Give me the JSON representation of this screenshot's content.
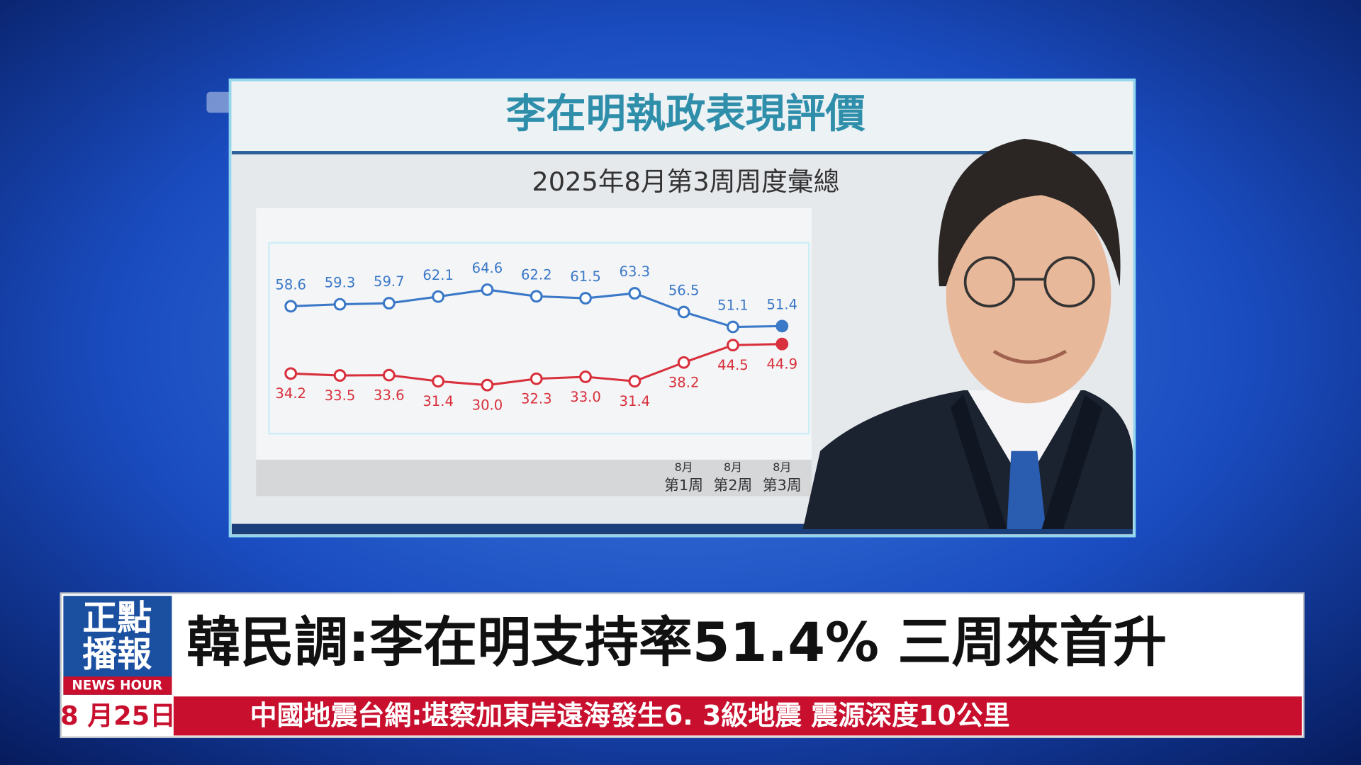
{
  "chart_data": {
    "type": "line",
    "title": "李在明執政表現評價",
    "subtitle": "2025年8月第3周周度彙總",
    "categories": [
      null,
      null,
      null,
      null,
      null,
      null,
      null,
      null,
      "8月\n第1周",
      "8月\n第2周",
      "8月\n第3周"
    ],
    "series": [
      {
        "color": "#3a78c8",
        "values": [
          58.6,
          59.3,
          59.7,
          62.1,
          64.6,
          62.2,
          61.5,
          63.3,
          56.5,
          51.1,
          51.4
        ]
      },
      {
        "color": "#d8303c",
        "values": [
          34.2,
          33.5,
          33.6,
          31.4,
          30.0,
          32.3,
          33.0,
          31.4,
          38.2,
          44.5,
          44.9
        ],
        "value_labels": [
          "34.2",
          "33.5",
          "33.6",
          "31.4",
          "30.0",
          "32.3",
          "33.0",
          "31.4",
          "38.2",
          "44.5",
          "44.9"
        ]
      }
    ]
  },
  "logo": {
    "line1": "正點",
    "line2": "播報",
    "english": "NEWS HOUR"
  },
  "headline": "韓民調:李在明支持率51.4% 三周來首升",
  "date": "8 月25日",
  "ticker": "中國地震台網:堪察加東岸遠海發生6. 3級地震  震源深度10公里"
}
